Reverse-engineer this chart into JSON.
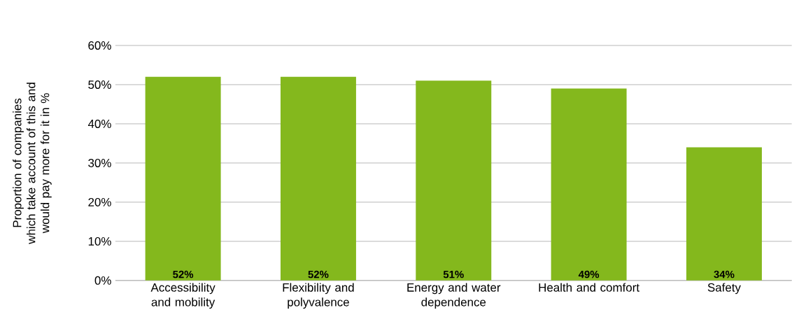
{
  "chart_data": {
    "type": "bar",
    "ylabel": "Proportion of companies which take account of this and would pay more for it in %",
    "categories": [
      "Accessibility and mobility",
      "Flexibility and polyvalence",
      "Energy and water dependence",
      "Health and comfort",
      "Safety"
    ],
    "values": [
      52,
      52,
      51,
      49,
      34
    ],
    "value_labels": [
      "52%",
      "52%",
      "51%",
      "49%",
      "34%"
    ],
    "color": "#84b81d",
    "ylim": [
      0,
      60
    ],
    "yticks": [
      {
        "value": 0,
        "label": "0%"
      },
      {
        "value": 10,
        "label": "10%"
      },
      {
        "value": 20,
        "label": "20%"
      },
      {
        "value": 30,
        "label": "30%"
      },
      {
        "value": 40,
        "label": "40%"
      },
      {
        "value": 50,
        "label": "50%"
      },
      {
        "value": 60,
        "label": "60%"
      }
    ],
    "grid": "y"
  }
}
